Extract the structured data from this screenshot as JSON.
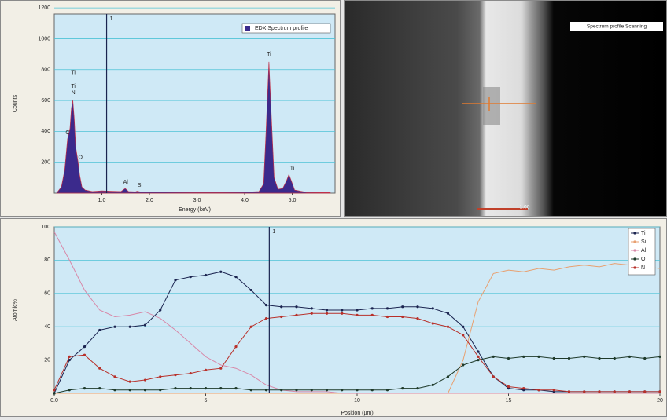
{
  "chart_data": [
    {
      "type": "area",
      "y_label": "Counts",
      "x_label": "Energy (keV)",
      "xlim": [
        0,
        5.9
      ],
      "ylim": [
        0,
        1160
      ],
      "xticks": [
        {
          "value": 1,
          "label": "1.0"
        },
        {
          "value": 2,
          "label": "2.0"
        },
        {
          "value": 3,
          "label": "3.0"
        },
        {
          "value": 4,
          "label": "4.0"
        },
        {
          "value": 5,
          "label": "5.0"
        }
      ],
      "yticks": [
        200,
        400,
        600,
        800,
        1000,
        1200
      ],
      "grid": true,
      "legend": "upper right",
      "cursor": {
        "x": 1.1,
        "label": "1"
      },
      "x": [
        0.05,
        0.15,
        0.22,
        0.28,
        0.33,
        0.36,
        0.39,
        0.42,
        0.45,
        0.5,
        0.53,
        0.58,
        0.65,
        0.8,
        1.0,
        1.2,
        1.4,
        1.49,
        1.56,
        1.7,
        1.74,
        1.8,
        2.0,
        2.5,
        3.0,
        3.5,
        4.0,
        4.3,
        4.4,
        4.45,
        4.51,
        4.56,
        4.62,
        4.7,
        4.8,
        4.88,
        4.93,
        4.98,
        5.05,
        5.3,
        5.8
      ],
      "series": [
        {
          "name": "EDX Spectrum profile",
          "color": "#3b2a8c",
          "values": [
            0,
            40,
            150,
            350,
            420,
            550,
            600,
            480,
            300,
            200,
            120,
            40,
            20,
            10,
            15,
            12,
            10,
            30,
            10,
            8,
            12,
            8,
            8,
            6,
            5,
            5,
            6,
            10,
            60,
            400,
            850,
            500,
            100,
            25,
            30,
            80,
            120,
            80,
            20,
            5,
            3
          ]
        }
      ],
      "annotations": [
        "Ti",
        "Ti",
        "N",
        "C",
        "O",
        "Al",
        "Si",
        "Ti",
        "Ti"
      ]
    },
    {
      "type": "line",
      "y_label": "Atomic%",
      "x_label": "Position (µm)",
      "xlim": [
        0,
        20
      ],
      "ylim": [
        0,
        100
      ],
      "xticks": [
        {
          "value": 0,
          "label": "0.0"
        },
        5,
        10,
        15,
        20
      ],
      "yticks": [
        20,
        40,
        60,
        80,
        100
      ],
      "grid": true,
      "legend": "upper right",
      "cursor": {
        "x": 7.1,
        "label": "1"
      },
      "x": [
        0,
        0.5,
        1,
        1.5,
        2,
        2.5,
        3,
        3.5,
        4,
        4.5,
        5,
        5.5,
        6,
        6.5,
        7,
        7.5,
        8,
        8.5,
        9,
        9.5,
        10,
        10.5,
        11,
        11.5,
        12,
        12.5,
        13,
        13.5,
        14,
        14.5,
        15,
        15.5,
        16,
        16.5,
        17,
        17.5,
        18,
        18.5,
        19,
        19.5,
        20
      ],
      "series": [
        {
          "name": "Ti",
          "color": "#1b2450",
          "markers": true,
          "values": [
            0,
            20,
            28,
            38,
            40,
            40,
            41,
            50,
            68,
            70,
            71,
            73,
            70,
            62,
            53,
            52,
            52,
            51,
            50,
            50,
            50,
            51,
            51,
            52,
            52,
            51,
            48,
            40,
            25,
            10,
            3,
            2,
            2,
            1,
            1,
            1,
            1,
            1,
            1,
            1,
            1
          ]
        },
        {
          "name": "Si",
          "color": "#e8a070",
          "markers": false,
          "values": [
            0,
            0,
            0,
            0,
            0,
            0,
            0,
            0,
            0,
            0,
            0,
            0,
            0,
            0,
            0,
            0,
            0,
            0,
            0,
            0,
            0,
            0,
            0,
            0,
            0,
            0,
            0,
            20,
            55,
            72,
            74,
            73,
            75,
            74,
            76,
            77,
            76,
            78,
            77,
            76,
            75
          ]
        },
        {
          "name": "Al",
          "color": "#d888a8",
          "markers": false,
          "values": [
            97,
            80,
            62,
            50,
            46,
            47,
            49,
            45,
            38,
            30,
            22,
            17,
            15,
            11,
            5,
            2,
            1,
            1,
            1,
            0,
            0,
            0,
            0,
            0,
            0,
            0,
            0,
            0,
            0,
            0,
            0,
            0,
            0,
            0,
            0,
            0,
            0,
            0,
            0,
            0,
            0
          ]
        },
        {
          "name": "O",
          "color": "#1e3a2a",
          "markers": true,
          "values": [
            0,
            2,
            3,
            3,
            2,
            2,
            2,
            2,
            3,
            3,
            3,
            3,
            3,
            2,
            2,
            2,
            2,
            2,
            2,
            2,
            2,
            2,
            2,
            3,
            3,
            5,
            10,
            17,
            20,
            22,
            21,
            22,
            22,
            21,
            21,
            22,
            21,
            21,
            22,
            21,
            22
          ]
        },
        {
          "name": "N",
          "color": "#b8302a",
          "markers": true,
          "values": [
            2,
            22,
            23,
            15,
            10,
            7,
            8,
            10,
            11,
            12,
            14,
            15,
            28,
            40,
            45,
            46,
            47,
            48,
            48,
            48,
            47,
            47,
            46,
            46,
            45,
            42,
            40,
            35,
            22,
            10,
            4,
            3,
            2,
            2,
            1,
            1,
            1,
            1,
            1,
            1,
            1
          ]
        }
      ]
    }
  ],
  "sem_image": {
    "label": "Spectrum profile Scanning",
    "scale_label": "1.00"
  }
}
